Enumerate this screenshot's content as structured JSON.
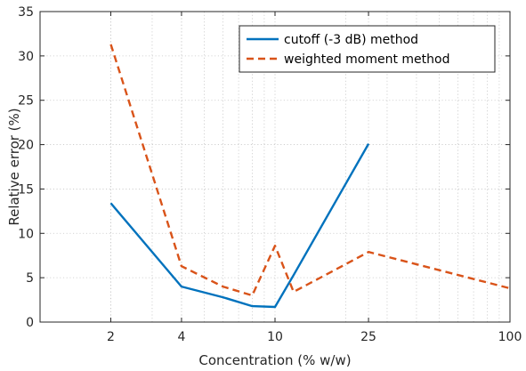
{
  "chart_data": {
    "type": "line",
    "xlabel": "Concentration (% w/w)",
    "ylabel": "Relative error (%)",
    "xscale": "log",
    "xlim": [
      1,
      100
    ],
    "ylim": [
      0,
      35
    ],
    "xticks": [
      2,
      4,
      10,
      25,
      100
    ],
    "xtick_labels": [
      "2",
      "4",
      "10",
      "25",
      "100"
    ],
    "yticks": [
      0,
      5,
      10,
      15,
      20,
      25,
      30,
      35
    ],
    "ytick_labels": [
      "0",
      "5",
      "10",
      "15",
      "20",
      "25",
      "30",
      "35"
    ],
    "grid": "dotted, major and minor on x",
    "legend_position": "top-right",
    "series": [
      {
        "name": "cutoff (-3 dB) method",
        "color": "#0072BD",
        "style": "solid",
        "x": [
          2,
          4,
          6,
          8,
          10,
          12,
          25
        ],
        "y": [
          13.4,
          4.0,
          2.8,
          1.8,
          1.7,
          5.3,
          20.1
        ]
      },
      {
        "name": "weighted moment method",
        "color": "#D95319",
        "style": "dashed",
        "x": [
          2,
          4,
          6,
          8,
          10,
          12,
          25,
          100
        ],
        "y": [
          31.3,
          6.3,
          4.0,
          3.0,
          8.6,
          3.4,
          7.9,
          3.8
        ]
      }
    ]
  }
}
